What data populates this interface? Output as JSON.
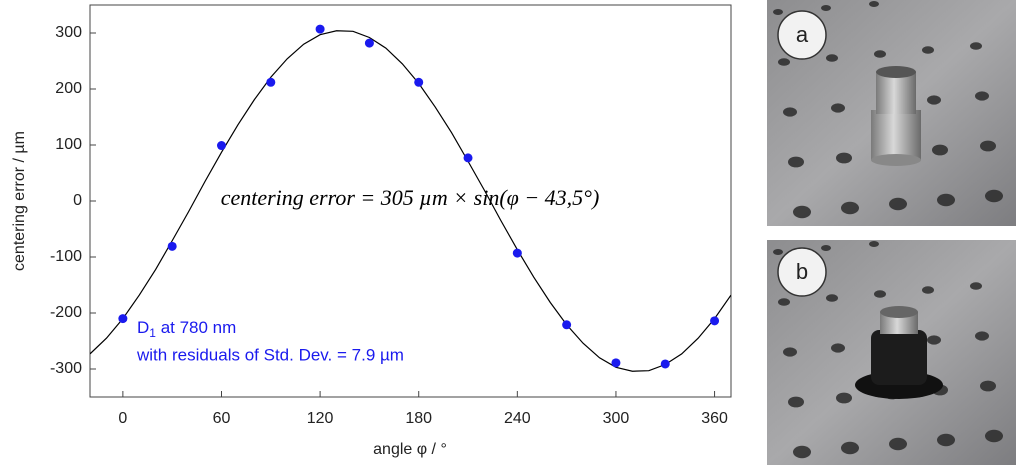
{
  "chart_data": {
    "type": "scatter",
    "x_label": "angle φ / °",
    "y_label": "centering error / µm",
    "equation": "centering error = 305 µm × sin(φ − 43,5°)",
    "annotation": {
      "line1_main": "D",
      "line1_sub": "1",
      "line1_rest": " at 780 nm",
      "line2": "with residuals of Std. Dev. = 7.9 µm",
      "color": "#1a1aee"
    },
    "xlim": [
      -20,
      370
    ],
    "ylim": [
      -350,
      350
    ],
    "xticks": [
      0,
      60,
      120,
      180,
      240,
      300,
      360
    ],
    "yticks": [
      -300,
      -200,
      -100,
      0,
      100,
      200,
      300
    ],
    "series": [
      {
        "type": "scatter",
        "color": "#1a1aee",
        "x": [
          0,
          30,
          60,
          90,
          120,
          150,
          180,
          210,
          240,
          270,
          300,
          330,
          360
        ],
        "values": [
          -210,
          -81,
          99,
          212,
          307,
          282,
          212,
          77,
          -93,
          -221,
          -289,
          -291,
          -214
        ]
      },
      {
        "type": "line",
        "color": "#000000",
        "x": [
          -20,
          -10,
          0,
          10,
          20,
          30,
          40,
          50,
          60,
          70,
          80,
          90,
          100,
          110,
          120,
          130,
          140,
          150,
          160,
          170,
          180,
          190,
          200,
          210,
          220,
          230,
          240,
          250,
          260,
          270,
          280,
          290,
          300,
          310,
          320,
          330,
          340,
          350,
          360,
          370
        ],
        "values": [
          -273,
          -245,
          -210,
          -168,
          -122,
          -71,
          -19,
          35,
          87,
          136,
          181,
          221,
          254,
          280,
          297,
          304,
          303,
          292,
          273,
          245,
          210,
          168,
          122,
          71,
          19,
          -35,
          -87,
          -136,
          -181,
          -221,
          -254,
          -280,
          -297,
          -304,
          -303,
          -292,
          -273,
          -245,
          -210,
          -168
        ]
      }
    ],
    "panels": [
      {
        "label": "a"
      },
      {
        "label": "b"
      }
    ]
  }
}
